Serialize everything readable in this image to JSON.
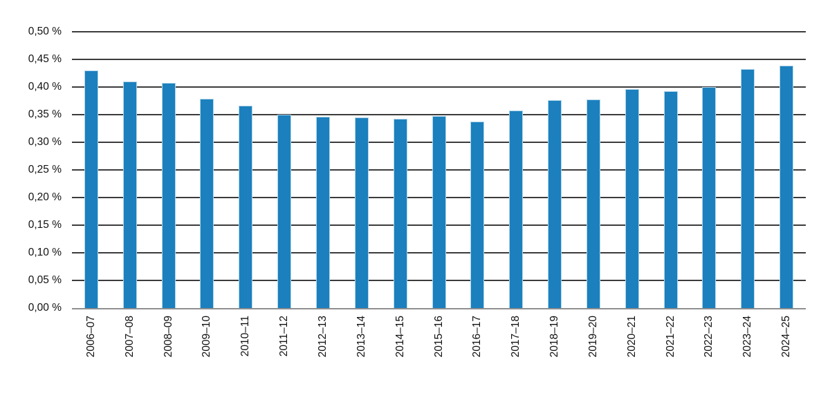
{
  "chart_data": {
    "type": "bar",
    "title": "",
    "xlabel": "",
    "ylabel": "",
    "categories": [
      "2006–07",
      "2007–08",
      "2008–09",
      "2009–10",
      "2010–11",
      "2011–12",
      "2012–13",
      "2013–14",
      "2014–15",
      "2015–16",
      "2016–17",
      "2017–18",
      "2018–19",
      "2019–20",
      "2020–21",
      "2021–22",
      "2022–23",
      "2023–24",
      "2024–25"
    ],
    "values": [
      0.43,
      0.41,
      0.408,
      0.379,
      0.366,
      0.35,
      0.346,
      0.345,
      0.342,
      0.347,
      0.337,
      0.358,
      0.376,
      0.378,
      0.396,
      0.392,
      0.4,
      0.433,
      0.439
    ],
    "value_unit": "%",
    "ylim": [
      0,
      0.5
    ],
    "ytick_step": 0.05,
    "yticks": [
      {
        "value": 0.5,
        "label": "0,50 %"
      },
      {
        "value": 0.45,
        "label": "0,45 %"
      },
      {
        "value": 0.4,
        "label": "0,40 %"
      },
      {
        "value": 0.35,
        "label": "0,35 %"
      },
      {
        "value": 0.3,
        "label": "0,30 %"
      },
      {
        "value": 0.25,
        "label": "0,25 %"
      },
      {
        "value": 0.2,
        "label": "0,20 %"
      },
      {
        "value": 0.15,
        "label": "0,15 %"
      },
      {
        "value": 0.1,
        "label": "0,10 %"
      },
      {
        "value": 0.05,
        "label": "0,05 %"
      },
      {
        "value": 0.0,
        "label": "0,00 %"
      }
    ],
    "grid": true,
    "legend": false,
    "colors": {
      "bar_fill": "#1b80bd",
      "bar_border": "#b2d6eb",
      "gridline": "#3b3b3b",
      "axis_line": "#8f8f8f",
      "text": "#111111"
    }
  }
}
